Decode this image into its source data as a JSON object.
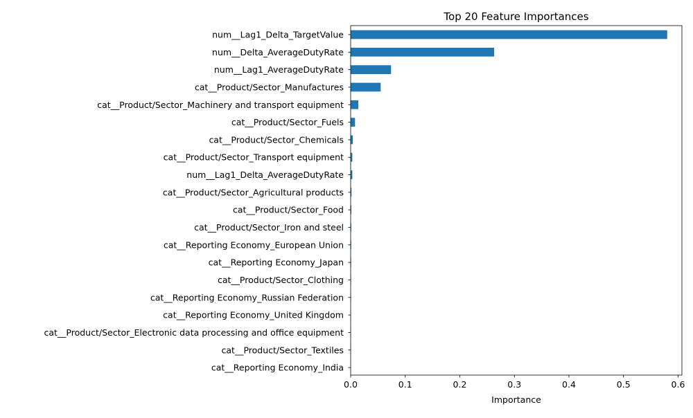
{
  "chart_data": {
    "type": "bar",
    "orientation": "horizontal",
    "title": "Top 20 Feature Importances",
    "xlabel": "Importance",
    "ylabel": "",
    "xlim": [
      0,
      0.607
    ],
    "xticks": [
      0.0,
      0.1,
      0.2,
      0.3,
      0.4,
      0.5,
      0.6
    ],
    "xtick_labels": [
      "0.0",
      "0.1",
      "0.2",
      "0.3",
      "0.4",
      "0.5",
      "0.6"
    ],
    "grid": false,
    "bar_color": "#1f77b4",
    "categories": [
      "num__Lag1_Delta_TargetValue",
      "num__Delta_AverageDutyRate",
      "num__Lag1_AverageDutyRate",
      "cat__Product/Sector_Manufactures",
      "cat__Product/Sector_Machinery and transport equipment",
      "cat__Product/Sector_Fuels",
      "cat__Product/Sector_Chemicals",
      "cat__Product/Sector_Transport equipment",
      "num__Lag1_Delta_AverageDutyRate",
      "cat__Product/Sector_Agricultural products",
      "cat__Product/Sector_Food",
      "cat__Product/Sector_Iron and steel",
      "cat__Reporting Economy_European Union",
      "cat__Reporting Economy_Japan",
      "cat__Product/Sector_Clothing",
      "cat__Reporting Economy_Russian Federation",
      "cat__Reporting Economy_United Kingdom",
      "cat__Product/Sector_Electronic data processing and office equipment",
      "cat__Product/Sector_Textiles",
      "cat__Reporting Economy_India"
    ],
    "values": [
      0.58,
      0.263,
      0.074,
      0.055,
      0.014,
      0.008,
      0.004,
      0.003,
      0.003,
      0.0015,
      0.0012,
      0.001,
      0.0009,
      0.0008,
      0.0007,
      0.0006,
      0.0005,
      0.0004,
      0.0003,
      0.0002
    ]
  }
}
